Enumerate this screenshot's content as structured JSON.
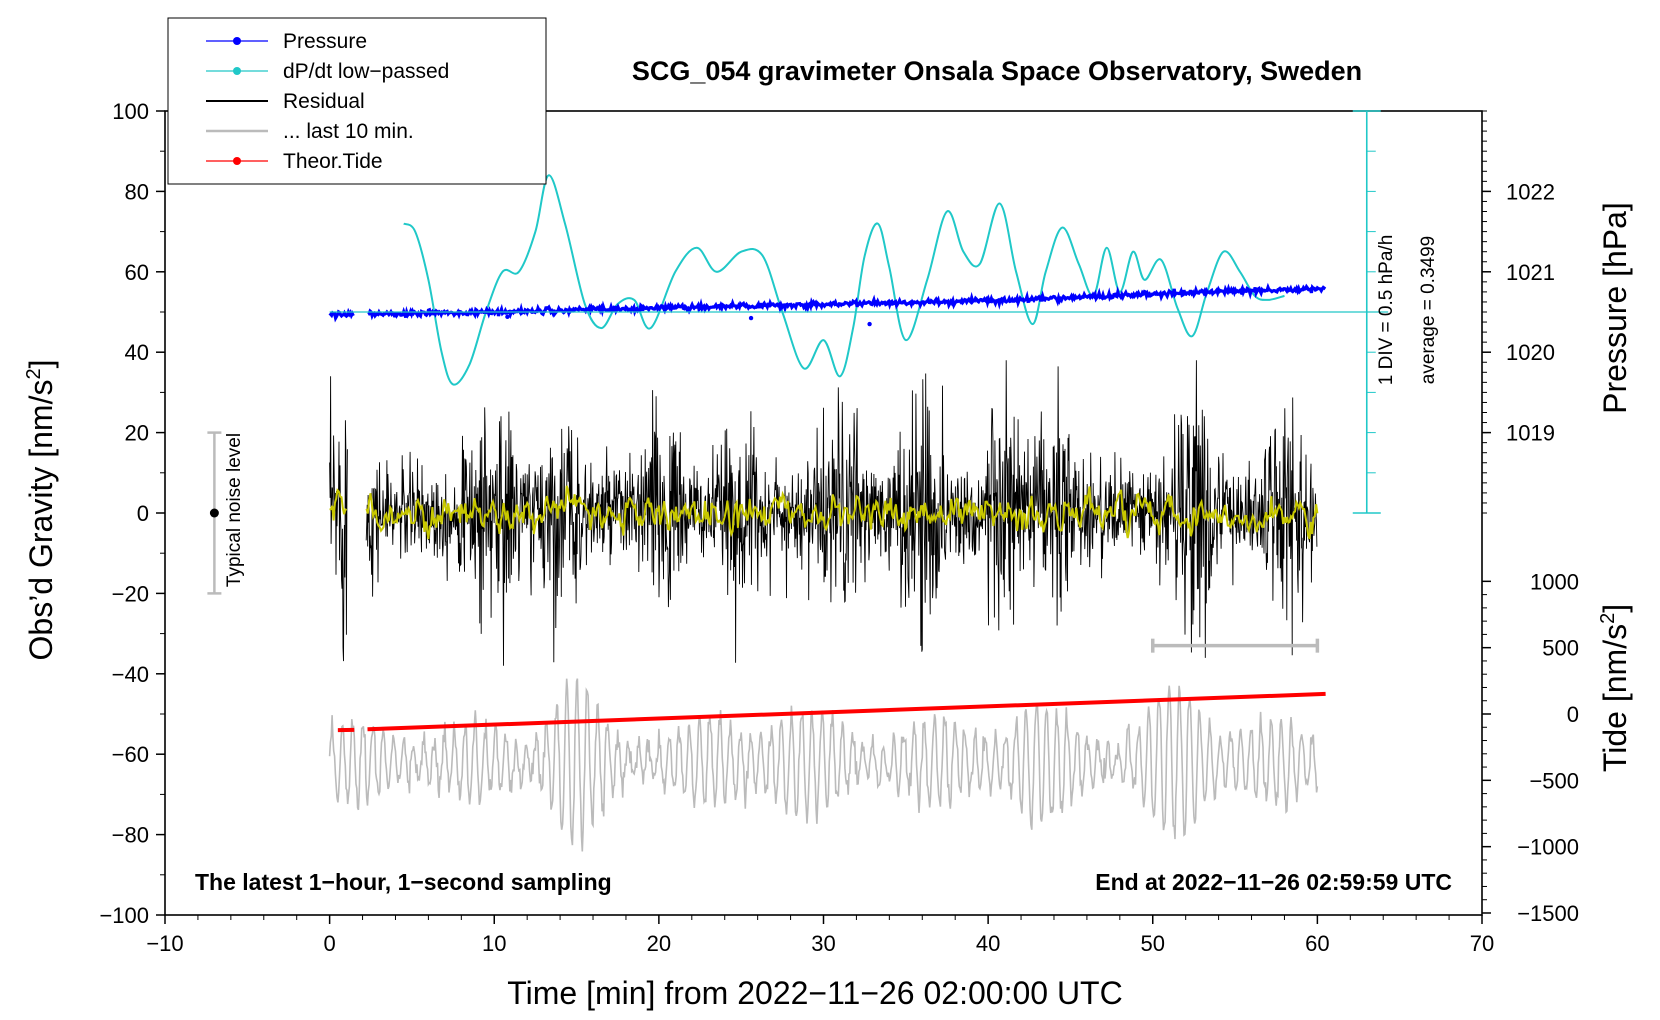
{
  "chart_data": {
    "type": "line",
    "title": "SCG_054 gravimeter Onsala Space Observatory, Sweden",
    "xlabel": "Time [min] from 2022−11−26 02:00:00 UTC",
    "ylabel_left": "Obs’d Gravity [nm/s",
    "ylabel_left_sup": "2",
    "ylabel_left_close": "]",
    "ylabel_pressure": "Pressure [hPa]",
    "ylabel_tide": "Tide [nm/s",
    "ylabel_tide_sup": "2",
    "ylabel_tide_close": "]",
    "xlim": [
      -10,
      70
    ],
    "ylim": [
      -100,
      100
    ],
    "x_ticks": [
      -10,
      0,
      10,
      20,
      30,
      40,
      50,
      60,
      70
    ],
    "x_tick_labels": [
      "−10",
      "0",
      "10",
      "20",
      "30",
      "40",
      "50",
      "60",
      "70"
    ],
    "y_ticks": [
      -100,
      -80,
      -60,
      -40,
      -20,
      0,
      20,
      40,
      60,
      80,
      100
    ],
    "y_tick_labels": [
      "−100",
      "−80",
      "−60",
      "−40",
      "−20",
      "0",
      "20",
      "40",
      "60",
      "80",
      "100"
    ],
    "pressure_axis": {
      "ticks": [
        1019,
        1020,
        1021,
        1022
      ],
      "tick_labels": [
        "1019",
        "1020",
        "1021",
        "1022"
      ],
      "y_at_1019": 20,
      "y_per_hPa": 20
    },
    "tide_axis": {
      "ticks": [
        1000,
        500,
        0,
        -500,
        -1000,
        -1500
      ],
      "tick_labels": [
        "1000",
        "500",
        "0",
        "−500",
        "−1000",
        "−1500"
      ],
      "y_at_0": -50,
      "y_per_unit": 0.033
    },
    "dpdt_scale": {
      "label": "1 DIV = 0.5 hPa/h",
      "average": "average = 0.3499",
      "baseline_y": 50
    },
    "noise_bar": {
      "label": "Typical noise level",
      "x": -7,
      "y_low": -20,
      "y_high": 20,
      "center": 0
    },
    "last10_bar": {
      "x_start": 50,
      "x_end": 60,
      "y": -33
    },
    "series": [
      {
        "name": "Pressure",
        "color": "#0000ff",
        "x": [
          0,
          5,
          10,
          15,
          20,
          25,
          30,
          35,
          40,
          45,
          50,
          55,
          60
        ],
        "y": [
          49.5,
          49.6,
          50.0,
          50.5,
          51.0,
          51.5,
          52.0,
          52.3,
          52.8,
          53.6,
          54.5,
          55.2,
          55.8
        ]
      },
      {
        "name": "dP/dt low−passed",
        "color": "#20c8c8",
        "x": [
          4.5,
          5.2,
          6,
          6.8,
          7.5,
          8.5,
          9.5,
          10.5,
          11.5,
          12.5,
          13.3,
          14.3,
          15.5,
          16.5,
          17.5,
          18.5,
          19.5,
          21,
          22.3,
          23.5,
          25,
          26.3,
          27.5,
          28.8,
          30,
          31,
          31.8,
          32.5,
          33.3,
          34,
          35,
          36.3,
          37.5,
          38.5,
          39.5,
          40.7,
          41.7,
          42.7,
          43.5,
          44.5,
          45.5,
          46.4,
          47.2,
          48,
          48.8,
          49.5,
          50.5,
          51.5,
          52.4,
          53.3,
          54.3,
          55.3,
          56.2,
          57,
          58
        ],
        "y": [
          72,
          70,
          58,
          40,
          32,
          37,
          50,
          60,
          60,
          70,
          84,
          72,
          52,
          46,
          52,
          53,
          46,
          60,
          66,
          60,
          65,
          64,
          50,
          36,
          43,
          34,
          46,
          64,
          72,
          61,
          43,
          58,
          75,
          65,
          62,
          77,
          60,
          47,
          60,
          71,
          62,
          54,
          66,
          55,
          65,
          58,
          63,
          51,
          44,
          55,
          65,
          60,
          54,
          53,
          54
        ]
      },
      {
        "name": "Residual",
        "color": "#000000"
      },
      {
        "name": "... last 10 min.",
        "color": "#bbbbbb"
      },
      {
        "name": "Theor.Tide",
        "color": "#ff0000",
        "x": [
          0.5,
          60.5
        ],
        "y": [
          -54,
          -45
        ]
      }
    ],
    "smoothed_residual_color": "#c8c800",
    "annotations": [
      "The latest 1−hour, 1−second sampling",
      "End at 2022−11−26 02:59:59 UTC"
    ]
  }
}
